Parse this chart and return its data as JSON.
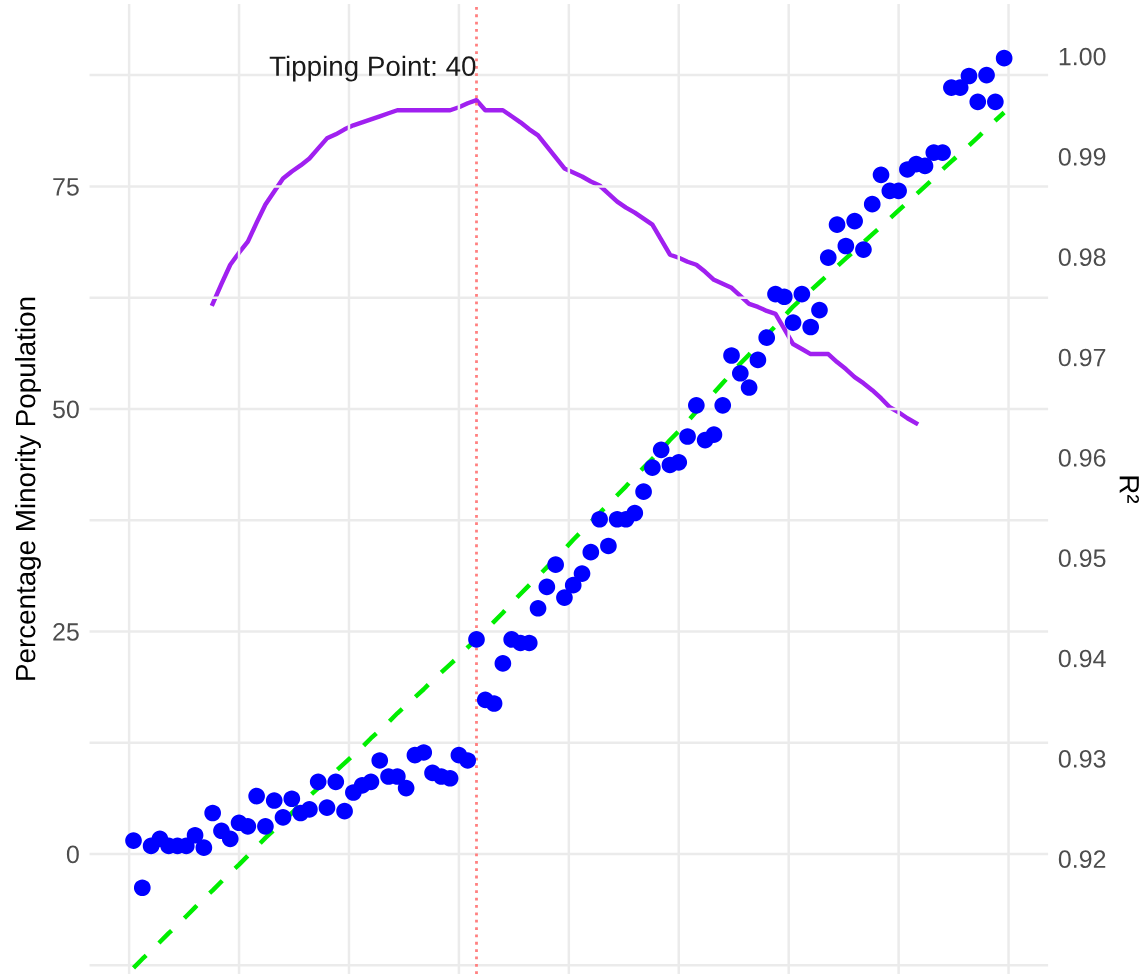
{
  "chart_data": {
    "type": "scatter",
    "ylabel": "Percentage Minority Population",
    "y2label": "R²",
    "categories": [
      null,
      null,
      null,
      null,
      null,
      null,
      null,
      null,
      null,
      null,
      null,
      null,
      null,
      null,
      null,
      null,
      null,
      null,
      null,
      null,
      null,
      null,
      null,
      null,
      null,
      null,
      null,
      null,
      null,
      null,
      null,
      null,
      null,
      null,
      null,
      null,
      null,
      null,
      null,
      null,
      null,
      null,
      null,
      null,
      null,
      null,
      null,
      null,
      null,
      null,
      null,
      null,
      null,
      null,
      null,
      null,
      null,
      null,
      null,
      null,
      null,
      null,
      null,
      null,
      null,
      null,
      null,
      null,
      null,
      null,
      null,
      null,
      null,
      null,
      null,
      null,
      null,
      null,
      null,
      null,
      null,
      null,
      null,
      null,
      null,
      null,
      null,
      null,
      null,
      null,
      null,
      null,
      null,
      null,
      null,
      null,
      null,
      null,
      null,
      null
    ],
    "ylim": [
      -13.5,
      95.5
    ],
    "y2lim": [
      0.9085,
      1.0052
    ],
    "yticks": [
      {
        "value": -12.5,
        "label": null
      },
      0,
      {
        "value": 12.5,
        "label": null
      },
      25,
      {
        "value": 37.5,
        "label": null
      },
      50,
      {
        "value": 62.5,
        "label": null
      },
      75,
      {
        "value": 87.5,
        "label": null
      }
    ],
    "y2ticks": [
      0.92,
      0.93,
      0.94,
      0.95,
      0.96,
      0.97,
      0.98,
      0.99,
      {
        "value": 1.0,
        "label": "1.00"
      }
    ],
    "tick_labels": "y",
    "grid": true,
    "annotations": [
      "Tipping Point: 40"
    ],
    "series": [
      {
        "color": "#0000ff",
        "marker": "circle",
        "values": [
          1.5,
          -3.8,
          0.9,
          1.7,
          0.9,
          0.9,
          0.9,
          2.1,
          0.7,
          4.6,
          2.6,
          1.7,
          3.5,
          3.1,
          6.5,
          3.1,
          6.0,
          4.1,
          6.2,
          4.6,
          5.0,
          8.1,
          5.2,
          8.1,
          4.8,
          6.9,
          7.7,
          8.1,
          10.5,
          8.7,
          8.7,
          7.4,
          11.1,
          11.4,
          9.1,
          8.7,
          8.5,
          11.1,
          10.5,
          24.1,
          17.3,
          16.9,
          21.4,
          24.1,
          23.7,
          23.7,
          27.6,
          30.0,
          32.5,
          28.8,
          30.2,
          31.5,
          33.9,
          37.6,
          34.6,
          37.6,
          37.6,
          38.3,
          40.7,
          43.4,
          45.4,
          43.7,
          44.0,
          46.9,
          50.4,
          46.5,
          47.1,
          50.4,
          56.0,
          54.0,
          52.4,
          55.5,
          58.0,
          62.9,
          62.6,
          59.7,
          62.9,
          59.2,
          61.1,
          67.0,
          70.7,
          68.3,
          71.1,
          67.9,
          73.0,
          76.3,
          74.5,
          74.5,
          76.9,
          77.5,
          77.3,
          78.8,
          78.8,
          86.1,
          86.1,
          87.4,
          84.5,
          87.5,
          84.5,
          89.4
        ]
      },
      {
        "type": "line",
        "color": "#00ee00",
        "line_style": "dashed",
        "values": [
          -12.8,
          -11.8,
          -10.9,
          -9.9,
          -8.9,
          -8.0,
          -7.0,
          -6.0,
          -5.0,
          -4.1,
          -3.1,
          -2.1,
          -1.2,
          -0.2,
          0.8,
          1.8,
          2.7,
          3.7,
          4.6,
          5.6,
          6.5,
          7.4,
          8.3,
          9.3,
          10.2,
          11.1,
          12.0,
          13.0,
          13.9,
          14.8,
          15.8,
          16.7,
          17.6,
          18.5,
          19.5,
          20.4,
          21.3,
          22.2,
          23.2,
          24.1,
          25.1,
          26.1,
          27.1,
          28.2,
          29.2,
          30.2,
          31.2,
          32.2,
          33.2,
          34.2,
          35.3,
          36.3,
          37.3,
          38.3,
          39.3,
          40.3,
          41.3,
          42.4,
          43.4,
          44.4,
          45.4,
          46.5,
          47.5,
          48.6,
          49.7,
          50.8,
          51.8,
          52.9,
          54.0,
          55.1,
          56.1,
          57.2,
          58.3,
          59.3,
          60.4,
          61.5,
          62.4,
          63.3,
          64.2,
          65.1,
          66.0,
          66.9,
          67.8,
          68.7,
          69.6,
          70.5,
          71.4,
          72.3,
          73.2,
          74.1,
          75.0,
          75.9,
          76.9,
          77.8,
          78.7,
          79.6,
          80.5,
          81.5,
          82.4,
          83.3
        ]
      },
      {
        "type": "line",
        "axis": "y2",
        "color": "#a020f0",
        "line_style": "solid",
        "values": [
          null,
          null,
          null,
          null,
          null,
          null,
          null,
          null,
          null,
          0.9753,
          0.9773,
          0.9792,
          0.9804,
          0.9815,
          0.9834,
          0.9852,
          0.9865,
          0.9878,
          0.9885,
          0.9891,
          0.9898,
          0.9908,
          0.9918,
          0.9922,
          0.9927,
          0.9931,
          0.9934,
          0.9937,
          0.994,
          0.9943,
          0.9946,
          0.9946,
          0.9946,
          0.9946,
          0.9946,
          0.9946,
          0.9946,
          0.9949,
          0.9953,
          0.9956,
          0.9946,
          0.9946,
          0.9946,
          0.994,
          0.9934,
          0.9927,
          0.9921,
          0.991,
          0.9899,
          0.9888,
          0.9884,
          0.988,
          0.9875,
          0.9871,
          0.9863,
          0.9855,
          0.9849,
          0.9844,
          0.9838,
          0.9832,
          0.9817,
          0.9802,
          0.9799,
          0.9795,
          0.9792,
          0.9785,
          0.9777,
          0.9773,
          0.9769,
          0.9761,
          0.9753,
          0.975,
          0.9746,
          0.9743,
          0.9728,
          0.9713,
          0.9708,
          0.9703,
          0.9703,
          0.9703,
          0.9695,
          0.9688,
          0.968,
          0.9674,
          0.9667,
          0.9659,
          0.965,
          0.9645,
          0.9639,
          0.9634,
          null,
          null,
          null,
          null,
          null,
          null,
          null,
          null,
          null,
          null
        ]
      }
    ]
  }
}
